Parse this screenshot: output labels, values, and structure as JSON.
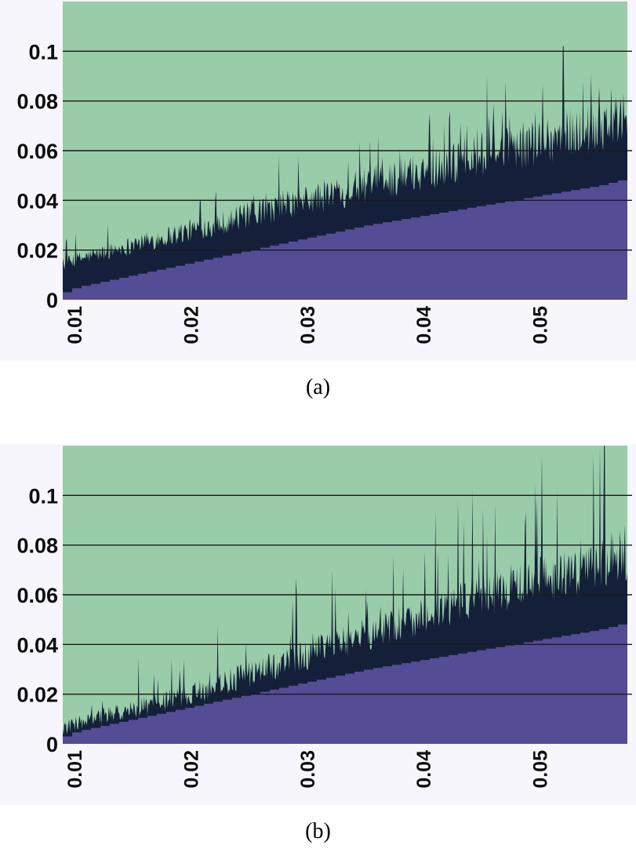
{
  "colors": {
    "background": "#99cca8",
    "spikes": "#14203a",
    "lower": "#544c94",
    "grid": "#1a1a1a",
    "axis_band": "#f6f6fc"
  },
  "chart_data": [
    {
      "type": "area",
      "panel_label": "(a)",
      "xlim": [
        0.009,
        0.0575
      ],
      "ylim": [
        0,
        0.12
      ],
      "yticks": [
        {
          "value": 0,
          "label": "0"
        },
        {
          "value": 0.02,
          "label": "0.02"
        },
        {
          "value": 0.04,
          "label": "0.04"
        },
        {
          "value": 0.06,
          "label": "0.06"
        },
        {
          "value": 0.08,
          "label": "0.08"
        },
        {
          "value": 0.1,
          "label": "0.1"
        }
      ],
      "xticks": [
        {
          "value": 0.01,
          "label": "0.01"
        },
        {
          "value": 0.02,
          "label": "0.02"
        },
        {
          "value": 0.03,
          "label": "0.03"
        },
        {
          "value": 0.04,
          "label": "0.04"
        },
        {
          "value": 0.05,
          "label": "0.05"
        }
      ],
      "grid": true,
      "series": [
        {
          "values_x": [
            0.009,
            0.01,
            0.015,
            0.02,
            0.025,
            0.03,
            0.035,
            0.04,
            0.045,
            0.05,
            0.055,
            0.0575
          ],
          "values_y": [
            0.003,
            0.005,
            0.01,
            0.015,
            0.02,
            0.025,
            0.03,
            0.034,
            0.038,
            0.042,
            0.046,
            0.049
          ]
        },
        {
          "values_x": [
            0.009,
            0.01,
            0.015,
            0.02,
            0.025,
            0.03,
            0.035,
            0.04,
            0.045,
            0.05,
            0.055,
            0.0575
          ],
          "values_y": [
            0.014,
            0.016,
            0.022,
            0.028,
            0.034,
            0.04,
            0.046,
            0.052,
            0.058,
            0.064,
            0.07,
            0.074
          ]
        }
      ],
      "peak": {
        "x": 0.052,
        "y": 0.102
      }
    },
    {
      "type": "area",
      "panel_label": "(b)",
      "xlim": [
        0.009,
        0.0575
      ],
      "ylim": [
        0,
        0.12
      ],
      "yticks": [
        {
          "value": 0,
          "label": "0"
        },
        {
          "value": 0.02,
          "label": "0.02"
        },
        {
          "value": 0.04,
          "label": "0.04"
        },
        {
          "value": 0.06,
          "label": "0.06"
        },
        {
          "value": 0.08,
          "label": "0.08"
        },
        {
          "value": 0.1,
          "label": "0.1"
        }
      ],
      "xticks": [
        {
          "value": 0.01,
          "label": "0.01"
        },
        {
          "value": 0.02,
          "label": "0.02"
        },
        {
          "value": 0.03,
          "label": "0.03"
        },
        {
          "value": 0.04,
          "label": "0.04"
        },
        {
          "value": 0.05,
          "label": "0.05"
        }
      ],
      "grid": true,
      "series": [
        {
          "values_x": [
            0.009,
            0.01,
            0.015,
            0.02,
            0.025,
            0.03,
            0.035,
            0.04,
            0.045,
            0.05,
            0.055,
            0.0575
          ],
          "values_y": [
            0.003,
            0.005,
            0.01,
            0.015,
            0.02,
            0.025,
            0.03,
            0.034,
            0.038,
            0.042,
            0.046,
            0.049
          ]
        },
        {
          "values_x": [
            0.009,
            0.01,
            0.015,
            0.02,
            0.025,
            0.03,
            0.035,
            0.04,
            0.045,
            0.05,
            0.055,
            0.0575
          ],
          "values_y": [
            0.006,
            0.008,
            0.014,
            0.02,
            0.028,
            0.036,
            0.044,
            0.052,
            0.06,
            0.066,
            0.072,
            0.076
          ]
        }
      ],
      "peak": {
        "x": 0.0555,
        "y": 0.12
      }
    }
  ]
}
